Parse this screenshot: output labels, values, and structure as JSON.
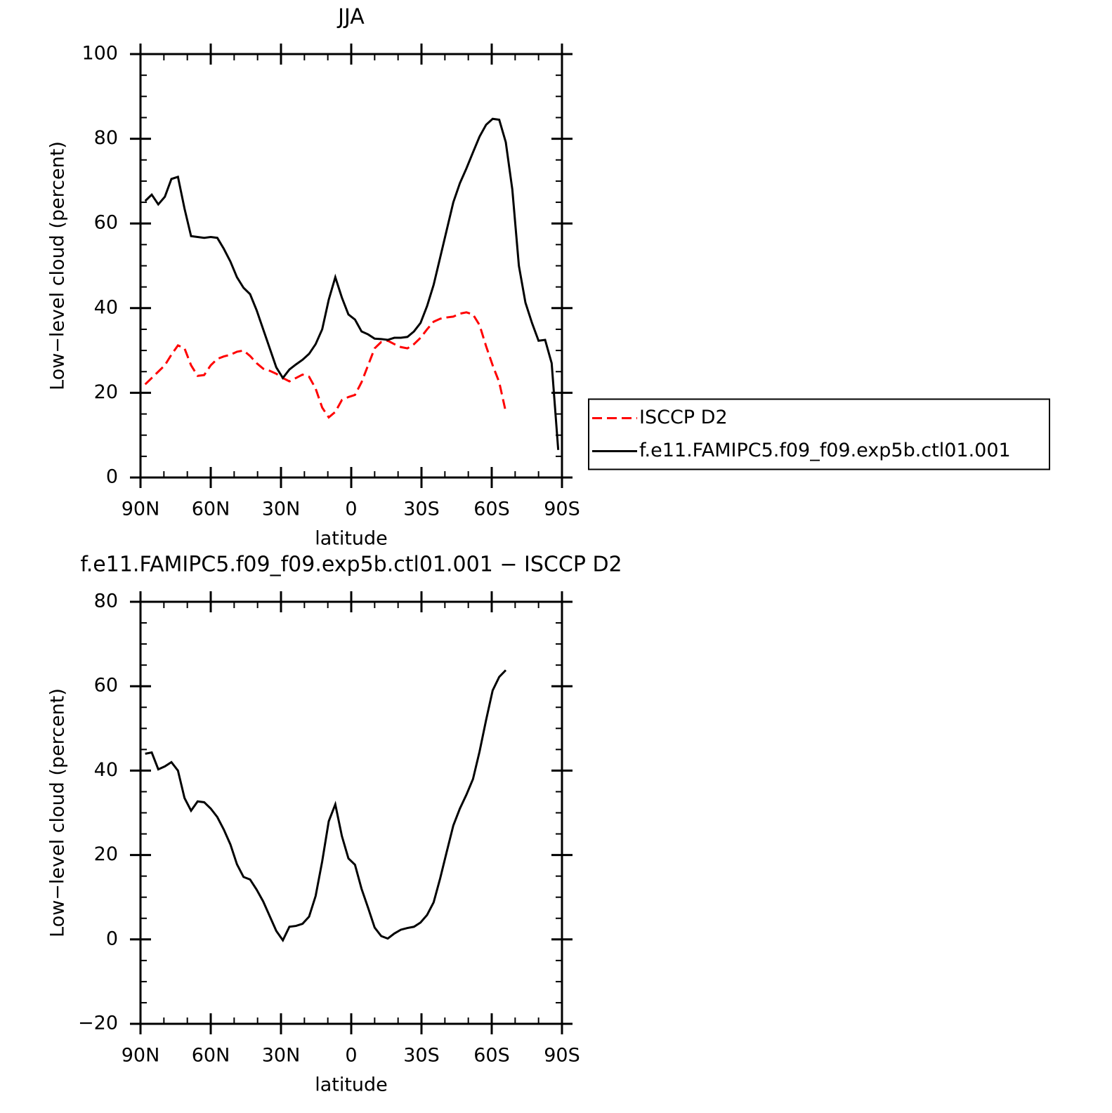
{
  "chart_data": [
    {
      "type": "line",
      "title": "JJA",
      "xlabel": "latitude",
      "ylabel": "Low−level cloud (percent)",
      "x": [
        88,
        85.2,
        82.4,
        79.6,
        76.8,
        74,
        71.2,
        68.4,
        65.6,
        62.8,
        60,
        57.2,
        54.4,
        51.6,
        48.8,
        46,
        43.2,
        40.4,
        37.6,
        34.8,
        32,
        29.2,
        26.4,
        23.6,
        20.8,
        18,
        15.2,
        12.4,
        9.6,
        6.8,
        4,
        1.2,
        -1.6,
        -4.4,
        -7.2,
        -10,
        -12.8,
        -15.6,
        -18.4,
        -21.2,
        -24,
        -26.8,
        -29.6,
        -32.4,
        -35.2,
        -38,
        -40.8,
        -43.6,
        -46.4,
        -49.2,
        -52,
        -54.8,
        -57.6,
        -60.4,
        -63.2,
        -66,
        -68.8,
        -71.6,
        -74.4,
        -77.2,
        -80,
        -82.8,
        -85.6,
        -88.4
      ],
      "series": [
        {
          "name": "ISCCP D2",
          "color": "#ff0000",
          "linestyle": "dashed",
          "values": [
            22,
            23.5,
            25,
            26.5,
            29,
            31.2,
            30.5,
            26.5,
            24,
            24.2,
            26.5,
            28,
            28.6,
            29,
            29.7,
            30,
            28.7,
            27,
            25.7,
            25.2,
            24.5,
            23.5,
            22.7,
            23.5,
            24.3,
            23.8,
            21,
            16.5,
            14.2,
            15.5,
            18.3,
            19,
            19.5,
            22.5,
            26.5,
            30.5,
            32,
            32.3,
            31.5,
            30.8,
            30.5,
            31.5,
            33,
            35,
            36.8,
            37.5,
            37.8,
            38,
            38.7,
            39,
            38.5,
            36,
            31,
            26.5,
            22.5,
            15.5,
            null,
            null,
            null,
            null,
            null,
            null,
            null,
            null
          ]
        },
        {
          "name": "f.e11.FAMIPC5.f09_f09.exp5b.ctl01.001",
          "color": "#000000",
          "linestyle": "solid",
          "values": [
            65.3,
            66.8,
            64.5,
            66.3,
            70.5,
            71,
            63.5,
            57,
            56.8,
            56.6,
            56.8,
            56.6,
            54,
            51,
            47.3,
            44.8,
            43.3,
            39.5,
            35,
            30.5,
            26,
            23.5,
            25.5,
            26.7,
            27.8,
            29.2,
            31.5,
            35,
            42,
            47.3,
            42.5,
            38.5,
            37.3,
            34.5,
            33.8,
            32.8,
            32.7,
            32.5,
            33,
            33,
            33.2,
            34.5,
            36.5,
            40.5,
            45.5,
            52,
            58.5,
            65,
            69.5,
            73,
            76.8,
            80.5,
            83.3,
            84.7,
            84.5,
            79.2,
            68,
            50,
            41.3,
            36.5,
            32.3,
            32.5,
            27,
            6.5
          ]
        }
      ],
      "xlim": [
        90,
        -90
      ],
      "xticks": [
        {
          "value": 90,
          "label": "90N"
        },
        {
          "value": 60,
          "label": "60N"
        },
        {
          "value": 30,
          "label": "30N"
        },
        0,
        {
          "value": -30,
          "label": "30S"
        },
        {
          "value": -60,
          "label": "60S"
        },
        {
          "value": -90,
          "label": "90S"
        }
      ],
      "ylim": [
        0,
        100
      ],
      "yticks": [
        0,
        20,
        40,
        60,
        80,
        100
      ],
      "legend": "right"
    },
    {
      "type": "line",
      "title": "f.e11.FAMIPC5.f09_f09.exp5b.ctl01.001 − ISCCP D2",
      "xlabel": "latitude",
      "ylabel": "Low−level cloud (percent)",
      "x": [
        88,
        85.2,
        82.4,
        79.6,
        76.8,
        74,
        71.2,
        68.4,
        65.6,
        62.8,
        60,
        57.2,
        54.4,
        51.6,
        48.8,
        46,
        43.2,
        40.4,
        37.6,
        34.8,
        32,
        29.2,
        26.4,
        23.6,
        20.8,
        18,
        15.2,
        12.4,
        9.6,
        6.8,
        4,
        1.2,
        -1.6,
        -4.4,
        -7.2,
        -10,
        -12.8,
        -15.6,
        -18.4,
        -21.2,
        -24,
        -26.8,
        -29.6,
        -32.4,
        -35.2,
        -38,
        -40.8,
        -43.6,
        -46.4,
        -49.2,
        -52,
        -54.8,
        -57.6,
        -60.4,
        -63.2,
        -66,
        -68.8,
        -71.6,
        -74.4,
        -77.2,
        -80,
        -82.8,
        -85.6,
        -88.4
      ],
      "series": [
        {
          "color": "#000000",
          "linestyle": "solid",
          "values": [
            44,
            44.3,
            40.3,
            41,
            42,
            40,
            33.5,
            30.5,
            32.7,
            32.5,
            31,
            29,
            26,
            22.5,
            17.8,
            14.8,
            14.2,
            11.8,
            9,
            5.5,
            2,
            -0.2,
            3,
            3.2,
            3.7,
            5.4,
            10.3,
            18.5,
            28,
            32,
            24.5,
            19.2,
            17.7,
            12,
            7.5,
            2.8,
            0.8,
            0.2,
            1.4,
            2.3,
            2.7,
            3,
            4,
            5.8,
            8.8,
            14.5,
            20.8,
            27,
            31,
            34.3,
            38,
            44.5,
            52,
            59,
            62.2,
            63.8,
            null,
            null,
            null,
            null,
            null,
            null,
            null,
            null
          ]
        }
      ],
      "xlim": [
        90,
        -90
      ],
      "xticks": [
        {
          "value": 90,
          "label": "90N"
        },
        {
          "value": 60,
          "label": "60N"
        },
        {
          "value": 30,
          "label": "30N"
        },
        0,
        {
          "value": -30,
          "label": "30S"
        },
        {
          "value": -60,
          "label": "60S"
        },
        {
          "value": -90,
          "label": "90S"
        }
      ],
      "ylim": [
        -20,
        80
      ],
      "yticks": [
        {
          "value": -20,
          "label": "−20"
        },
        0,
        20,
        40,
        60,
        80
      ]
    }
  ]
}
